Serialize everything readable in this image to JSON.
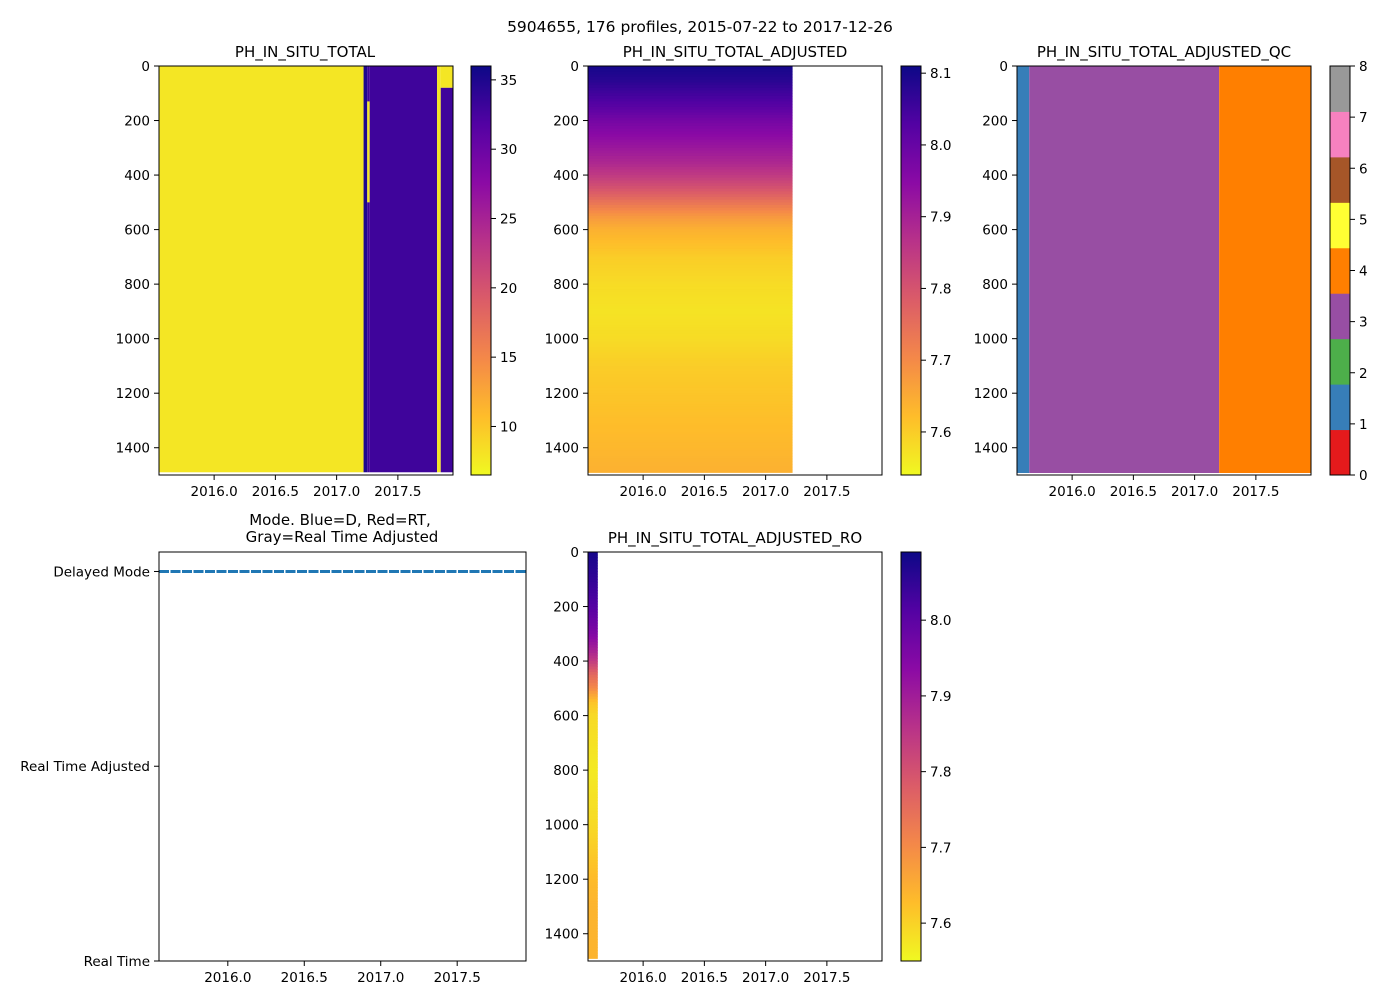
{
  "figure": {
    "suptitle": "5904655, 176 profiles, 2015-07-22 to 2017-12-26"
  },
  "colors": {
    "plasma_stops": [
      "#0d0887",
      "#5302a3",
      "#8b0aa5",
      "#b83289",
      "#db5c68",
      "#f48849",
      "#febd2a",
      "#f0f921"
    ],
    "qc_colors": [
      "#e41a1c",
      "#377eb8",
      "#4daf4a",
      "#984ea3",
      "#ff7f00",
      "#ffff33",
      "#a65628",
      "#f781bf",
      "#999999"
    ],
    "mode_line": "#1f77b4"
  },
  "chart_data": [
    {
      "id": "ph_total",
      "type": "heatmap",
      "title": "PH_IN_SITU_TOTAL",
      "xlim": [
        2015.55,
        2017.95
      ],
      "xticks": [
        "2016.0",
        "2016.5",
        "2017.0",
        "2017.5"
      ],
      "xtick_values": [
        2016.0,
        2016.5,
        2017.0,
        2017.5
      ],
      "ylim": [
        1500,
        0
      ],
      "yticks": [
        "0",
        "200",
        "400",
        "600",
        "800",
        "1000",
        "1200",
        "1400"
      ],
      "ytick_values": [
        0,
        200,
        400,
        600,
        800,
        1000,
        1200,
        1400
      ],
      "colorbar": {
        "range": [
          6.5,
          36
        ],
        "ticks": [
          "10",
          "15",
          "20",
          "25",
          "30",
          "35"
        ],
        "tick_values": [
          10,
          15,
          20,
          25,
          30,
          35
        ]
      },
      "regions": [
        {
          "x": [
            2015.55,
            2017.22
          ],
          "depth": [
            0,
            1490
          ],
          "value": 7.8
        },
        {
          "x": [
            2017.22,
            2017.25
          ],
          "depth": [
            0,
            1490
          ],
          "value": 35
        },
        {
          "x": [
            2017.25,
            2017.27
          ],
          "depth": [
            0,
            130
          ],
          "value": 33
        },
        {
          "x": [
            2017.25,
            2017.27
          ],
          "depth": [
            130,
            500
          ],
          "value": 7.8
        },
        {
          "x": [
            2017.25,
            2017.27
          ],
          "depth": [
            500,
            1490
          ],
          "value": 33
        },
        {
          "x": [
            2017.27,
            2017.82
          ],
          "depth": [
            0,
            1490
          ],
          "value": 33
        },
        {
          "x": [
            2017.82,
            2017.85
          ],
          "depth": [
            0,
            1490
          ],
          "value": 7.8
        },
        {
          "x": [
            2017.85,
            2017.95
          ],
          "depth": [
            0,
            80
          ],
          "value": 7.8
        },
        {
          "x": [
            2017.85,
            2017.95
          ],
          "depth": [
            80,
            1490
          ],
          "value": 33
        }
      ]
    },
    {
      "id": "ph_adjusted",
      "type": "heatmap",
      "title": "PH_IN_SITU_TOTAL_ADJUSTED",
      "xlim": [
        2015.55,
        2017.95
      ],
      "xticks": [
        "2016.0",
        "2016.5",
        "2017.0",
        "2017.5"
      ],
      "xtick_values": [
        2016.0,
        2016.5,
        2017.0,
        2017.5
      ],
      "ylim": [
        1500,
        0
      ],
      "yticks": [
        "0",
        "200",
        "400",
        "600",
        "800",
        "1000",
        "1200",
        "1400"
      ],
      "ytick_values": [
        0,
        200,
        400,
        600,
        800,
        1000,
        1200,
        1400
      ],
      "data_x_range": [
        2015.55,
        2017.22
      ],
      "colorbar": {
        "range": [
          7.54,
          8.11
        ],
        "ticks": [
          "7.6",
          "7.7",
          "7.8",
          "7.9",
          "8.0",
          "8.1"
        ],
        "tick_values": [
          7.6,
          7.7,
          7.8,
          7.9,
          8.0,
          8.1
        ]
      },
      "profile_depth": [
        0,
        50,
        100,
        150,
        200,
        250,
        300,
        350,
        400,
        450,
        500,
        550,
        600,
        650,
        700,
        800,
        900,
        1000,
        1100,
        1200,
        1300,
        1400,
        1490
      ],
      "profile_value": [
        8.1,
        8.08,
        8.05,
        8.02,
        7.98,
        7.95,
        7.92,
        7.89,
        7.85,
        7.8,
        7.74,
        7.68,
        7.64,
        7.62,
        7.6,
        7.58,
        7.57,
        7.58,
        7.6,
        7.61,
        7.62,
        7.63,
        7.64
      ]
    },
    {
      "id": "ph_adjusted_qc",
      "type": "heatmap",
      "title": "PH_IN_SITU_TOTAL_ADJUSTED_QC",
      "xlim": [
        2015.55,
        2017.95
      ],
      "xticks": [
        "2016.0",
        "2016.5",
        "2017.0",
        "2017.5"
      ],
      "xtick_values": [
        2016.0,
        2016.5,
        2017.0,
        2017.5
      ],
      "ylim": [
        1500,
        0
      ],
      "yticks": [
        "0",
        "200",
        "400",
        "600",
        "800",
        "1000",
        "1200",
        "1400"
      ],
      "ytick_values": [
        0,
        200,
        400,
        600,
        800,
        1000,
        1200,
        1400
      ],
      "colorbar": {
        "range": [
          0,
          8
        ],
        "ticks": [
          "0",
          "1",
          "2",
          "3",
          "4",
          "5",
          "6",
          "7",
          "8"
        ],
        "tick_values": [
          0,
          1,
          2,
          3,
          4,
          5,
          6,
          7,
          8
        ]
      },
      "regions": [
        {
          "x": [
            2015.55,
            2015.65
          ],
          "qc": 1
        },
        {
          "x": [
            2015.65,
            2017.2
          ],
          "qc": 3
        },
        {
          "x": [
            2017.2,
            2017.95
          ],
          "qc": 4
        }
      ]
    },
    {
      "id": "mode",
      "type": "line",
      "title": "Mode. Blue=D, Red=RT,",
      "title_line2": "Gray=Real Time Adjusted",
      "xlim": [
        2015.55,
        2017.95
      ],
      "xticks": [
        "2016.0",
        "2016.5",
        "2017.0",
        "2017.5"
      ],
      "xtick_values": [
        2016.0,
        2016.5,
        2017.0,
        2017.5
      ],
      "ycategories": [
        "Real Time",
        "Real Time Adjusted",
        "Delayed Mode"
      ],
      "ylim": [
        0,
        2.1
      ],
      "series": [
        {
          "name": "Delayed Mode",
          "x": [
            2015.55,
            2017.95
          ],
          "y": [
            2,
            2
          ]
        }
      ]
    },
    {
      "id": "ph_adjusted_ro",
      "type": "heatmap",
      "title": "PH_IN_SITU_TOTAL_ADJUSTED_RO",
      "xlim": [
        2015.55,
        2017.95
      ],
      "xticks": [
        "2016.0",
        "2016.5",
        "2017.0",
        "2017.5"
      ],
      "xtick_values": [
        2016.0,
        2016.5,
        2017.0,
        2017.5
      ],
      "ylim": [
        1500,
        0
      ],
      "yticks": [
        "0",
        "200",
        "400",
        "600",
        "800",
        "1000",
        "1200",
        "1400"
      ],
      "ytick_values": [
        0,
        200,
        400,
        600,
        800,
        1000,
        1200,
        1400
      ],
      "data_x_range": [
        2015.55,
        2015.63
      ],
      "colorbar": {
        "range": [
          7.55,
          8.09
        ],
        "ticks": [
          "7.6",
          "7.7",
          "7.8",
          "7.9",
          "8.0"
        ],
        "tick_values": [
          7.6,
          7.7,
          7.8,
          7.9,
          8.0
        ]
      },
      "profile_depth": [
        0,
        100,
        200,
        300,
        350,
        400,
        450,
        500,
        550,
        600,
        700,
        800,
        900,
        1000,
        1100,
        1200,
        1300,
        1400,
        1490
      ],
      "profile_value": [
        8.08,
        8.05,
        8.01,
        7.95,
        7.9,
        7.84,
        7.76,
        7.7,
        7.62,
        7.59,
        7.58,
        7.57,
        7.58,
        7.59,
        7.61,
        7.63,
        7.64,
        7.64,
        7.64
      ]
    }
  ]
}
